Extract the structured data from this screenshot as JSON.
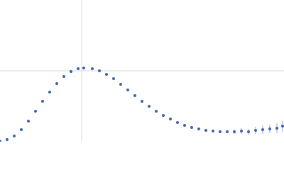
{
  "chart_data": {
    "type": "scatter",
    "color": "#3a62b0",
    "grid": true,
    "xlim": [
      0,
      400
    ],
    "ylim": [
      0,
      200
    ],
    "xticks": [
      115
    ],
    "yticks": [
      100
    ],
    "x": [
      0,
      10,
      20,
      30,
      40,
      50,
      60,
      70,
      80,
      90,
      100,
      110,
      118,
      130,
      140,
      150,
      160,
      170,
      180,
      190,
      200,
      210,
      220,
      230,
      240,
      250,
      260,
      270,
      280,
      290,
      300,
      310,
      320,
      330,
      340,
      350,
      360,
      370,
      380,
      390,
      398
    ],
    "y": [
      0.5,
      3,
      8,
      17,
      29,
      43,
      57,
      70,
      82,
      92,
      99,
      103,
      104,
      103,
      100,
      95,
      89,
      81,
      73,
      65,
      57,
      50,
      43,
      37,
      32,
      27,
      23,
      20,
      18,
      16,
      15,
      14,
      14,
      14,
      15,
      14,
      16,
      17,
      18,
      19,
      22
    ],
    "errors": [
      0,
      0,
      0,
      0,
      0,
      0,
      0,
      0,
      0,
      0,
      0,
      0,
      0,
      0,
      0,
      0,
      0,
      0,
      0,
      0,
      0,
      0,
      0,
      0,
      0,
      0,
      1,
      1,
      1,
      1,
      2,
      2,
      2,
      3,
      4,
      4,
      5,
      6,
      6,
      7,
      8
    ]
  }
}
